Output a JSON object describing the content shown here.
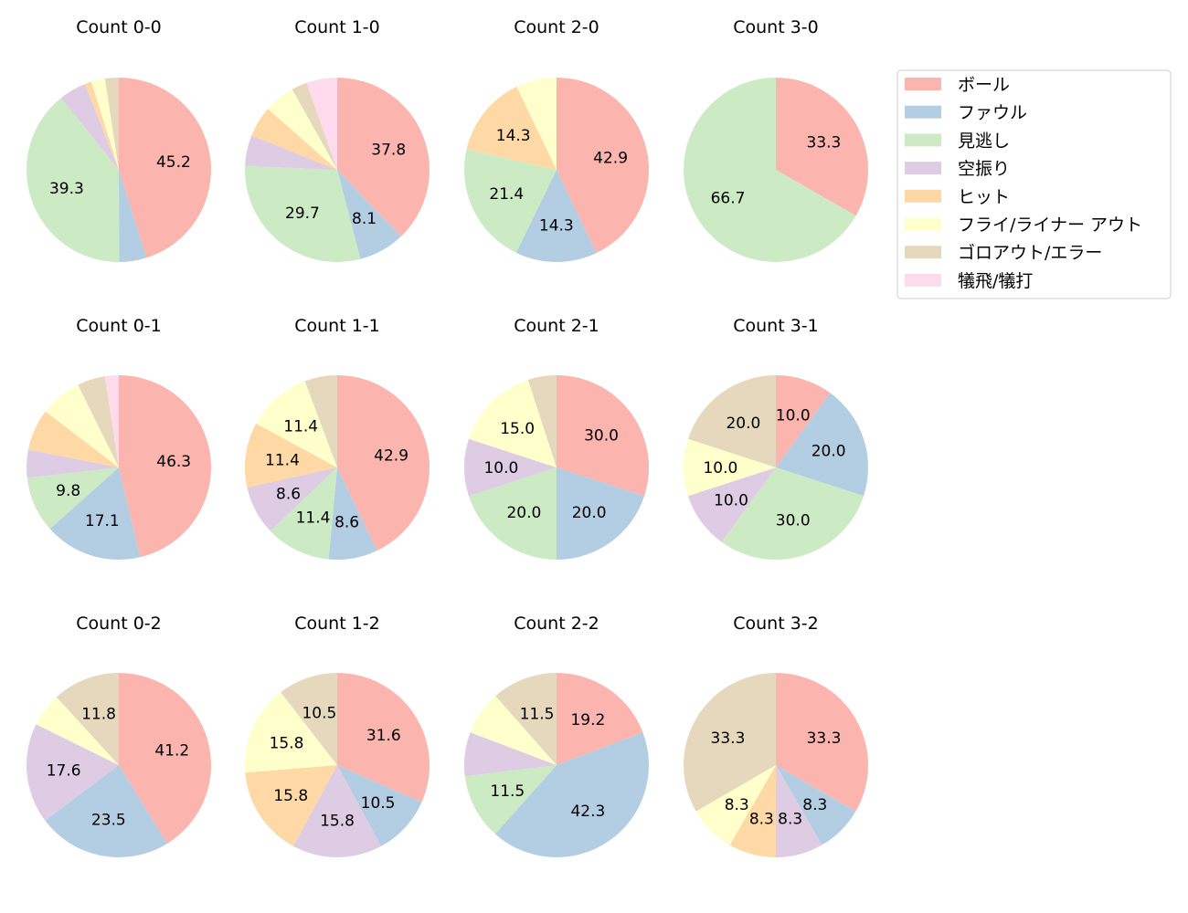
{
  "chart_data": {
    "type": "pie",
    "label_threshold_percent": 8,
    "categories": [
      "ボール",
      "ファウル",
      "見逃し",
      "空振り",
      "ヒット",
      "フライ/ライナー アウト",
      "ゴロアウト/エラー",
      "犠飛/犠打"
    ],
    "colors": [
      "#fbb4ae",
      "#b3cde3",
      "#ccebc5",
      "#decbe4",
      "#fed9a6",
      "#ffffcc",
      "#e5d8bd",
      "#fddaec"
    ],
    "legend": "right",
    "pies": [
      {
        "title": "Count 0-0",
        "values": [
          45.2,
          4.8,
          39.3,
          4.8,
          1.2,
          2.4,
          2.4,
          0
        ]
      },
      {
        "title": "Count 1-0",
        "values": [
          37.8,
          8.1,
          29.7,
          5.4,
          5.4,
          5.4,
          2.7,
          5.4
        ]
      },
      {
        "title": "Count 2-0",
        "values": [
          42.9,
          14.3,
          21.4,
          0,
          14.3,
          7.1,
          0,
          0
        ]
      },
      {
        "title": "Count 3-0",
        "values": [
          33.3,
          0,
          66.7,
          0,
          0,
          0,
          0,
          0
        ]
      },
      {
        "title": "Count 0-1",
        "values": [
          46.3,
          17.1,
          9.8,
          4.9,
          7.3,
          7.3,
          4.9,
          2.4
        ]
      },
      {
        "title": "Count 1-1",
        "values": [
          42.9,
          8.6,
          11.4,
          8.6,
          11.4,
          11.4,
          5.7,
          0
        ]
      },
      {
        "title": "Count 2-1",
        "values": [
          30.0,
          20.0,
          20.0,
          10.0,
          0,
          15.0,
          5.0,
          0
        ]
      },
      {
        "title": "Count 3-1",
        "values": [
          10.0,
          20.0,
          30.0,
          10.0,
          0,
          10.0,
          20.0,
          0
        ]
      },
      {
        "title": "Count 0-2",
        "values": [
          41.2,
          23.5,
          0,
          17.6,
          0,
          5.9,
          11.8,
          0
        ]
      },
      {
        "title": "Count 1-2",
        "values": [
          31.6,
          10.5,
          0,
          15.8,
          15.8,
          15.8,
          10.5,
          0
        ]
      },
      {
        "title": "Count 2-2",
        "values": [
          19.2,
          42.3,
          11.5,
          7.7,
          0,
          7.7,
          11.5,
          0
        ]
      },
      {
        "title": "Count 3-2",
        "values": [
          33.3,
          8.3,
          0,
          8.3,
          8.3,
          8.3,
          33.3,
          0
        ]
      }
    ]
  }
}
